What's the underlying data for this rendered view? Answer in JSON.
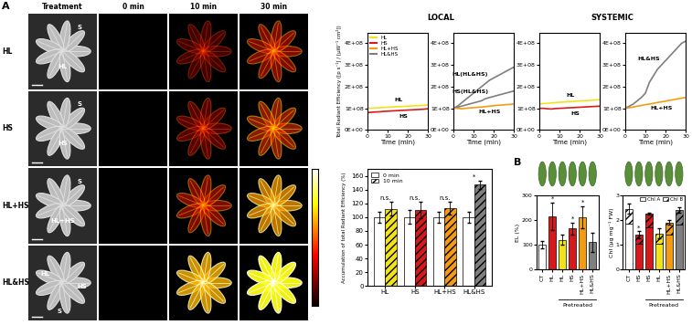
{
  "image_panel": {
    "panel_label": "A",
    "column_headers": [
      "Treatment",
      "0 min",
      "10 min",
      "30 min"
    ],
    "rows": [
      {
        "label": "HL",
        "photo_labels": [
          "S",
          "HL"
        ]
      },
      {
        "label": "HS",
        "photo_labels": [
          "S",
          "HS"
        ]
      },
      {
        "label": "HL+HS",
        "photo_labels": [
          "S",
          "HL+HS"
        ]
      },
      {
        "label": "HL&HS",
        "photo_labels": [
          "HL",
          "HS",
          "S"
        ]
      }
    ]
  },
  "panel_B_label": "B",
  "chart_data": [
    {
      "type": "line",
      "group": "LOCAL",
      "xlabel": "Time (min)",
      "ylabel": "Total Radiant Efficiency ([p s⁻¹] / [µW⁻¹ cm²])",
      "x": [
        0,
        2,
        4,
        6,
        8,
        10,
        12,
        14,
        16,
        18,
        20,
        22,
        24,
        26,
        28,
        30
      ],
      "xlim": [
        0,
        30
      ],
      "xticks": [
        0,
        10,
        20,
        30
      ],
      "ylim": [
        0,
        450000000.0
      ],
      "yticks": [
        {
          "value": 0,
          "label": "0E+00"
        },
        {
          "value": 100000000.0,
          "label": "1E+08"
        },
        {
          "value": 200000000.0,
          "label": "2E+08"
        },
        {
          "value": 300000000.0,
          "label": "3E+08"
        },
        {
          "value": 400000000.0,
          "label": "4E+08"
        }
      ],
      "legend": "upper left",
      "legend_entries": [
        {
          "name": "HL",
          "color": "#f2e21a"
        },
        {
          "name": "HS",
          "color": "#d7191c"
        },
        {
          "name": "HL+HS",
          "color": "#f39c12"
        },
        {
          "name": "HL&HS",
          "color": "#7f7f7f"
        }
      ],
      "series": [
        {
          "name": "HL",
          "color": "#f2e21a",
          "values": [
            100000000.0,
            101000000.0,
            102000000.0,
            103000000.0,
            104000000.0,
            105000000.0,
            106000000.0,
            107000000.0,
            108000000.0,
            109000000.0,
            110000000.0,
            111000000.0,
            112000000.0,
            113000000.0,
            114000000.0,
            115000000.0
          ]
        },
        {
          "name": "HS",
          "color": "#d7191c",
          "values": [
            80000000.0,
            82000000.0,
            83000000.0,
            84000000.0,
            86000000.0,
            87000000.0,
            88000000.0,
            89000000.0,
            90000000.0,
            91000000.0,
            92000000.0,
            93000000.0,
            94000000.0,
            95000000.0,
            96000000.0,
            98000000.0
          ]
        }
      ]
    },
    {
      "type": "line",
      "group": "LOCAL",
      "xlabel": "Time (min)",
      "x": [
        0,
        2,
        4,
        6,
        8,
        10,
        12,
        14,
        16,
        18,
        20,
        22,
        24,
        26,
        28,
        30
      ],
      "xlim": [
        0,
        30
      ],
      "xticks": [
        0,
        10,
        20,
        30
      ],
      "ylim": [
        0,
        450000000.0
      ],
      "yticks": [
        {
          "value": 0,
          "label": "0E+00"
        },
        {
          "value": 100000000.0,
          "label": "1E+08"
        },
        {
          "value": 200000000.0,
          "label": "2E+08"
        },
        {
          "value": 300000000.0,
          "label": "3E+08"
        },
        {
          "value": 400000000.0,
          "label": "4E+08"
        }
      ],
      "series": [
        {
          "name": "HL(HL&HS)",
          "color": "#7f7f7f",
          "values": [
            100000000.0,
            110000000.0,
            125000000.0,
            140000000.0,
            155000000.0,
            170000000.0,
            185000000.0,
            200000000.0,
            215000000.0,
            230000000.0,
            240000000.0,
            250000000.0,
            260000000.0,
            270000000.0,
            280000000.0,
            290000000.0
          ]
        },
        {
          "name": "HS(HL&HS)",
          "color": "#7f7f7f",
          "values": [
            100000000.0,
            105000000.0,
            110000000.0,
            115000000.0,
            120000000.0,
            125000000.0,
            130000000.0,
            135000000.0,
            145000000.0,
            150000000.0,
            155000000.0,
            160000000.0,
            165000000.0,
            170000000.0,
            175000000.0,
            180000000.0
          ]
        },
        {
          "name": "HL+HS",
          "color": "#f39c12",
          "values": [
            100000000.0,
            100000000.0,
            98000000.0,
            100000000.0,
            102000000.0,
            103000000.0,
            105000000.0,
            106000000.0,
            108000000.0,
            110000000.0,
            112000000.0,
            114000000.0,
            115000000.0,
            117000000.0,
            118000000.0,
            120000000.0
          ]
        }
      ]
    },
    {
      "type": "line",
      "group": "SYSTEMIC",
      "xlabel": "Time (min)",
      "x": [
        0,
        2,
        4,
        6,
        8,
        10,
        12,
        14,
        16,
        18,
        20,
        22,
        24,
        26,
        28,
        30
      ],
      "xlim": [
        0,
        30
      ],
      "xticks": [
        0,
        10,
        20,
        30
      ],
      "ylim": [
        0,
        450000000.0
      ],
      "yticks": [
        {
          "value": 0,
          "label": "0E+00"
        },
        {
          "value": 100000000.0,
          "label": "1E+08"
        },
        {
          "value": 200000000.0,
          "label": "2E+08"
        },
        {
          "value": 300000000.0,
          "label": "3E+08"
        },
        {
          "value": 400000000.0,
          "label": "4E+08"
        }
      ],
      "series": [
        {
          "name": "HL",
          "color": "#f2e21a",
          "values": [
            120000000.0,
            122000000.0,
            123000000.0,
            125000000.0,
            126000000.0,
            128000000.0,
            129000000.0,
            130000000.0,
            131000000.0,
            133000000.0,
            134000000.0,
            135000000.0,
            136000000.0,
            137000000.0,
            139000000.0,
            140000000.0
          ]
        },
        {
          "name": "HS",
          "color": "#d7191c",
          "values": [
            100000000.0,
            100000000.0,
            98000000.0,
            97000000.0,
            99000000.0,
            100000000.0,
            101000000.0,
            102000000.0,
            103000000.0,
            104000000.0,
            105000000.0,
            106000000.0,
            107000000.0,
            108000000.0,
            109000000.0,
            110000000.0
          ]
        }
      ]
    },
    {
      "type": "line",
      "group": "SYSTEMIC",
      "xlabel": "Time (min)",
      "x": [
        0,
        2,
        4,
        6,
        8,
        10,
        12,
        14,
        16,
        18,
        20,
        22,
        24,
        26,
        28,
        30
      ],
      "xlim": [
        0,
        30
      ],
      "xticks": [
        0,
        10,
        20,
        30
      ],
      "ylim": [
        0,
        450000000.0
      ],
      "yticks": [
        {
          "value": 0,
          "label": "0E+00"
        },
        {
          "value": 100000000.0,
          "label": "1E+08"
        },
        {
          "value": 200000000.0,
          "label": "2E+08"
        },
        {
          "value": 300000000.0,
          "label": "3E+08"
        },
        {
          "value": 400000000.0,
          "label": "4E+08"
        }
      ],
      "series": [
        {
          "name": "HL&HS",
          "color": "#7f7f7f",
          "values": [
            100000000.0,
            110000000.0,
            120000000.0,
            135000000.0,
            150000000.0,
            170000000.0,
            220000000.0,
            250000000.0,
            280000000.0,
            300000000.0,
            320000000.0,
            340000000.0,
            360000000.0,
            380000000.0,
            400000000.0,
            410000000.0
          ]
        },
        {
          "name": "HL+HS",
          "color": "#f39c12",
          "values": [
            100000000.0,
            103000000.0,
            106000000.0,
            110000000.0,
            113000000.0,
            117000000.0,
            120000000.0,
            123000000.0,
            127000000.0,
            130000000.0,
            133000000.0,
            137000000.0,
            140000000.0,
            144000000.0,
            147000000.0,
            150000000.0
          ]
        }
      ]
    },
    {
      "type": "bar",
      "ylabel": "Accumulation of total Radiant Efficiency (%)",
      "categories": [
        "HL",
        "HS",
        "HL+HS",
        "HL&HS"
      ],
      "ylim": [
        0,
        170
      ],
      "yticks": [
        0,
        20,
        40,
        60,
        80,
        100,
        120,
        140,
        160
      ],
      "legend": "upper left",
      "series": [
        {
          "name": "0 min",
          "color": "#ffffff",
          "values": [
            100,
            100,
            100,
            100
          ],
          "errors": [
            8,
            10,
            8,
            8
          ]
        },
        {
          "name": "10 min",
          "colors": [
            "#f2e21a",
            "#d7191c",
            "#f39c12",
            "#7f7f7f"
          ],
          "values": [
            112,
            110,
            113,
            147
          ],
          "errors": [
            10,
            12,
            9,
            6
          ]
        }
      ],
      "marks": [
        "n.s.",
        "n.s.",
        "n.s.",
        "*"
      ]
    },
    {
      "type": "bar",
      "ylabel": "EL (%)",
      "categories": [
        "CT",
        "HL",
        "HL",
        "HS",
        "HL+HS",
        "HL&HS"
      ],
      "colors": [
        "#ffffff",
        "#d7191c",
        "#f2e21a",
        "#d7191c",
        "#f39c12",
        "#7f7f7f"
      ],
      "values": [
        100,
        215,
        120,
        165,
        210,
        110
      ],
      "errors": [
        15,
        55,
        20,
        25,
        45,
        40
      ],
      "ylim": [
        0,
        300
      ],
      "yticks": [
        0,
        100,
        200,
        300
      ],
      "marks": [
        null,
        "*",
        null,
        "*",
        "*",
        null
      ],
      "group_label": "Pretreated",
      "group_from": 2,
      "group_to": 5
    },
    {
      "type": "bar",
      "stacked": true,
      "ylabel": "Chl (µg mg⁻¹ FW)",
      "categories": [
        "CT",
        "HS",
        "HS",
        "HL",
        "HL+HS",
        "HL&HS"
      ],
      "colors": [
        "#ffffff",
        "#d7191c",
        "#d7191c",
        "#f2e21a",
        "#f39c12",
        "#7f7f7f"
      ],
      "ylim": [
        0,
        3
      ],
      "yticks": [
        0,
        1,
        2,
        3
      ],
      "legend": "upper right",
      "series": [
        {
          "name": "Chl A",
          "values": [
            1.85,
            1.05,
            1.7,
            1.05,
            1.4,
            1.8
          ]
        },
        {
          "name": "Chl B",
          "values": [
            0.6,
            0.35,
            0.55,
            0.4,
            0.5,
            0.6
          ],
          "errors": [
            0.2,
            0.15,
            0.05,
            0.2,
            0.1,
            0.1
          ]
        }
      ],
      "marks": [
        null,
        "*",
        null,
        null,
        null,
        null
      ],
      "group_label": "Pretreated",
      "group_from": 2,
      "group_to": 5
    }
  ]
}
